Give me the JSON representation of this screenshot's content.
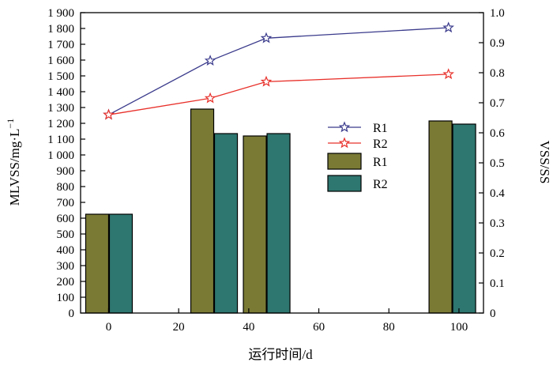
{
  "chart_data": {
    "type": "bar",
    "xlabel": "运行时间/d",
    "ylabel_left": "MLVSS/mg·L",
    "ylabel_left_superscript": "−1",
    "ylabel_right": "VSS/SS",
    "xlim": [
      -8,
      107
    ],
    "ylim_left": [
      0,
      1900
    ],
    "ylim_right": [
      0,
      1.0
    ],
    "x_ticks": [
      "0",
      "20",
      "40",
      "60",
      "80",
      "100"
    ],
    "x_tick_values": [
      0,
      20,
      40,
      60,
      80,
      100
    ],
    "y_left_ticks": [
      "0",
      "100",
      "200",
      "300",
      "400",
      "500",
      "600",
      "700",
      "800",
      "900",
      "1 000",
      "1 100",
      "1 200",
      "1 300",
      "1 400",
      "1 500",
      "1 600",
      "1 700",
      "1 800",
      "1 900"
    ],
    "y_left_tick_values": [
      0,
      100,
      200,
      300,
      400,
      500,
      600,
      700,
      800,
      900,
      1000,
      1100,
      1200,
      1300,
      1400,
      1500,
      1600,
      1700,
      1800,
      1900
    ],
    "y_right_ticks": [
      "0",
      "0.1",
      "0.2",
      "0.3",
      "0.4",
      "0.5",
      "0.6",
      "0.7",
      "0.8",
      "0.9",
      "1.0"
    ],
    "y_right_tick_values": [
      0,
      0.1,
      0.2,
      0.3,
      0.4,
      0.5,
      0.6,
      0.7,
      0.8,
      0.9,
      1.0
    ],
    "grid": false,
    "legend_position": "center-right",
    "bar_series": [
      {
        "name": "R1",
        "axis": "left",
        "color": "#7a7a35",
        "points": [
          {
            "x": 0,
            "y": 625
          },
          {
            "x": 30,
            "y": 1290
          },
          {
            "x": 45,
            "y": 1120
          },
          {
            "x": 98,
            "y": 1215
          }
        ]
      },
      {
        "name": "R2",
        "axis": "left",
        "color": "#2e7670",
        "points": [
          {
            "x": 0,
            "y": 625
          },
          {
            "x": 30,
            "y": 1135
          },
          {
            "x": 45,
            "y": 1135
          },
          {
            "x": 98,
            "y": 1195
          }
        ]
      }
    ],
    "line_series": [
      {
        "name": "R1",
        "axis": "right",
        "color": "#3a3a8c",
        "marker": "star",
        "points": [
          {
            "x": 0,
            "y": 0.66
          },
          {
            "x": 29,
            "y": 0.84
          },
          {
            "x": 45,
            "y": 0.915
          },
          {
            "x": 97,
            "y": 0.95
          }
        ]
      },
      {
        "name": "R2",
        "axis": "right",
        "color": "#e8302a",
        "marker": "star",
        "points": [
          {
            "x": 0,
            "y": 0.66
          },
          {
            "x": 29,
            "y": 0.715
          },
          {
            "x": 45,
            "y": 0.77
          },
          {
            "x": 97,
            "y": 0.795
          }
        ]
      }
    ]
  }
}
